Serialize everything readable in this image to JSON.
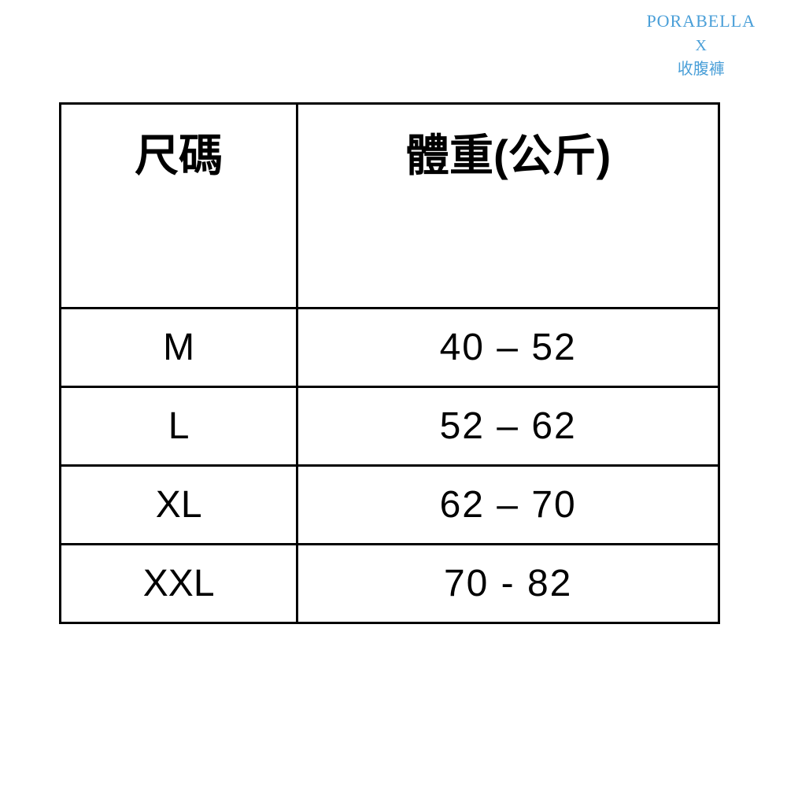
{
  "watermark": {
    "line1": "PORABELLA",
    "line2": "X",
    "line3": "收腹褲",
    "color": "#4a9fd8"
  },
  "table": {
    "type": "table",
    "border_color": "#000000",
    "border_width": 3,
    "background_color": "#ffffff",
    "text_color": "#000000",
    "columns": [
      {
        "label": "尺碼",
        "width_pct": 36,
        "align": "center"
      },
      {
        "label": "體重(公斤)",
        "width_pct": 64,
        "align": "center"
      }
    ],
    "header_fontsize": 56,
    "header_weight": "bold",
    "cell_fontsize": 48,
    "rows": [
      {
        "size": "M",
        "weight": "40 – 52"
      },
      {
        "size": "L",
        "weight": "52 – 62"
      },
      {
        "size": "XL",
        "weight": "62 – 70"
      },
      {
        "size": "XXL",
        "weight": "70 - 82"
      }
    ]
  }
}
